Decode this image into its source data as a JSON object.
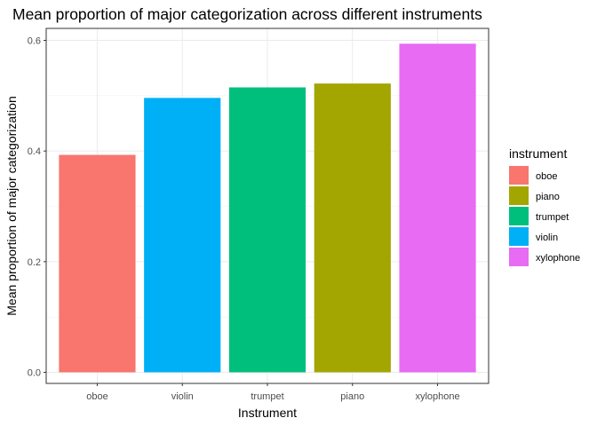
{
  "chart_data": {
    "type": "bar",
    "title": "Mean proportion of major categorization across different instruments",
    "xlabel": "Instrument",
    "ylabel": "Mean proportion of major categorization",
    "categories": [
      "oboe",
      "violin",
      "trumpet",
      "piano",
      "xylophone"
    ],
    "values": [
      0.393,
      0.496,
      0.515,
      0.522,
      0.594
    ],
    "ylim": [
      0,
      0.6
    ],
    "yticks": [
      "0.0",
      "0.2",
      "0.4",
      "0.6"
    ],
    "grid": true,
    "legend": {
      "title": "instrument",
      "position": "right",
      "entries": [
        "oboe",
        "piano",
        "trumpet",
        "violin",
        "xylophone"
      ]
    },
    "colors": {
      "oboe": "#F8766D",
      "piano": "#A3A500",
      "trumpet": "#00BF7D",
      "violin": "#00B0F6",
      "xylophone": "#E76BF3"
    }
  }
}
